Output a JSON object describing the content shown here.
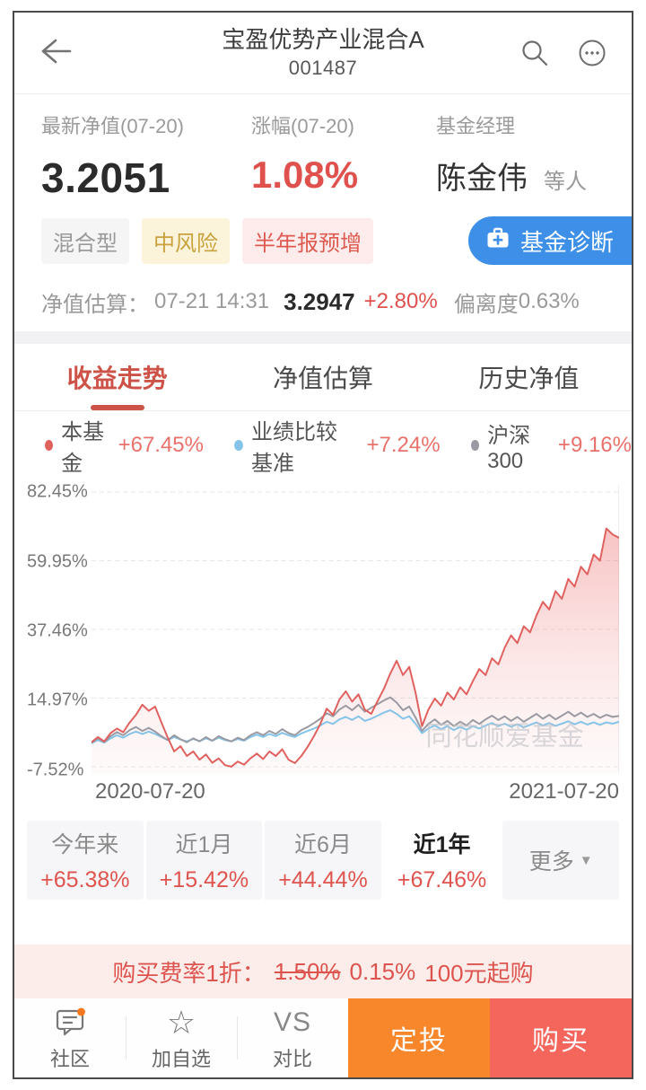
{
  "header": {
    "title": "宝盈优势产业混合A",
    "code": "001487"
  },
  "stats": {
    "nav_label": "最新净值(07-20)",
    "nav_value": "3.2051",
    "change_label": "涨幅(07-20)",
    "change_value": "1.08%",
    "manager_label": "基金经理",
    "manager_name": "陈金伟",
    "manager_suffix": "等人"
  },
  "tags": [
    {
      "label": "混合型",
      "type": "gray",
      "key": "fund-type"
    },
    {
      "label": "中风险",
      "type": "yellow",
      "key": "risk-level"
    },
    {
      "label": "半年报预增",
      "type": "red",
      "key": "report-flag"
    }
  ],
  "diagnose_button": {
    "label": "基金诊断",
    "color": "#3d8fe8",
    "icon": "first-aid-kit-icon"
  },
  "estimate": {
    "label": "净值估算：",
    "time": "07-21 14:31",
    "value": "3.2947",
    "change": "+2.80%",
    "deviation_label": "偏离度",
    "deviation_value": "0.63%"
  },
  "tabs": [
    {
      "label": "收益走势",
      "key": "yield-trend",
      "active": true
    },
    {
      "label": "净值估算",
      "key": "nav-estimate",
      "active": false
    },
    {
      "label": "历史净值",
      "key": "history-nav",
      "active": false
    }
  ],
  "chart_data": {
    "type": "line",
    "x_range": [
      "2020-07-20",
      "2021-07-20"
    ],
    "y_ticks": [
      82.45,
      59.95,
      37.46,
      14.97,
      -7.52
    ],
    "y_tick_labels": [
      "82.45%",
      "59.95%",
      "37.46%",
      "14.97%",
      "-7.52%"
    ],
    "grid": "dashed",
    "legend_position": "top",
    "watermark": "同花顺爱基金",
    "series": [
      {
        "name": "本基金",
        "return_label": "+67.45%",
        "color": "#e0605e",
        "area_fill": true,
        "values": [
          0.5,
          2.2,
          0.8,
          3.5,
          5,
          3.8,
          7,
          9.5,
          12.8,
          10.8,
          12.2,
          7,
          2,
          -2.5,
          -0.8,
          -4,
          -2.5,
          -5.2,
          -3.5,
          -6.2,
          -4.8,
          -7,
          -7.5,
          -5.8,
          -6.8,
          -4.8,
          -3.2,
          -5,
          -2.5,
          -4,
          -1.8,
          -5.2,
          -6.3,
          -4,
          -1,
          2.5,
          6.5,
          11.5,
          9.5,
          14.5,
          17.2,
          13.8,
          16.2,
          11.2,
          9.8,
          14,
          18,
          23,
          27.2,
          22.5,
          25.2,
          16.5,
          5.8,
          11.2,
          14.8,
          12.5,
          16.8,
          14.5,
          18.5,
          16.2,
          20.5,
          24.5,
          22.5,
          28,
          26,
          31.5,
          35.5,
          33,
          38.5,
          36.5,
          42,
          46.5,
          44,
          50,
          47.5,
          54,
          51.5,
          58,
          55.5,
          62,
          60,
          70.5,
          68.5,
          67.45
        ]
      },
      {
        "name": "业绩比较基准",
        "return_label": "+7.24%",
        "color": "#85c4e8",
        "area_fill": false,
        "values": [
          0.2,
          1.2,
          0.4,
          1.8,
          2.8,
          2,
          3.2,
          4,
          3.2,
          4,
          3.2,
          2.2,
          1.2,
          2.2,
          1.4,
          0.8,
          1.6,
          0.9,
          1.8,
          1,
          2,
          1.2,
          0.8,
          1.6,
          1,
          2.2,
          3,
          2.2,
          3.2,
          2.5,
          3.6,
          2.8,
          2.2,
          3.4,
          4.2,
          5,
          6,
          7.2,
          6.5,
          8,
          8.8,
          7.8,
          9,
          7.5,
          8.2,
          9.2,
          10.2,
          11,
          9.8,
          8.2,
          9,
          6.5,
          3.5,
          5,
          6,
          4.8,
          5.8,
          4.5,
          5.5,
          4.6,
          5.8,
          5,
          6,
          6.8,
          5.8,
          6.6,
          5.6,
          6.4,
          5.4,
          6.2,
          7,
          6,
          6.8,
          5.9,
          6.6,
          7.4,
          6.4,
          7.2,
          6.3,
          7,
          6.2,
          7,
          6.6,
          7.24
        ]
      },
      {
        "name": "沪深300",
        "return_label": "+9.16%",
        "color": "#9a9aa2",
        "area_fill": false,
        "values": [
          0.3,
          1.8,
          0.5,
          2.5,
          3.8,
          2.8,
          4.5,
          5.5,
          4.2,
          5.2,
          4,
          2.5,
          1.2,
          2.8,
          1.5,
          0.5,
          1.8,
          0.8,
          2.2,
          1,
          2.5,
          1.5,
          0.8,
          2,
          1.2,
          2.8,
          3.8,
          2.8,
          4.2,
          3.2,
          4.8,
          3.5,
          2.8,
          4.5,
          5.5,
          6.8,
          8.2,
          10,
          9,
          11.2,
          12.5,
          11,
          12.8,
          10.5,
          11.8,
          13,
          14.2,
          15.2,
          13.5,
          11,
          12.2,
          8.5,
          4.2,
          6.5,
          8,
          6.2,
          7.5,
          5.8,
          7.2,
          6,
          7.8,
          6.5,
          8,
          9.2,
          7.8,
          9,
          7.5,
          8.8,
          7.2,
          8.5,
          9.8,
          8.2,
          9.5,
          8,
          9.2,
          10.5,
          9,
          10.2,
          8.8,
          9.8,
          8.5,
          9.5,
          8.8,
          9.16
        ]
      }
    ]
  },
  "periods": [
    {
      "label": "今年来",
      "value": "+65.38%",
      "key": "ytd",
      "active": false
    },
    {
      "label": "近1月",
      "value": "+15.42%",
      "key": "1m",
      "active": false
    },
    {
      "label": "近6月",
      "value": "+44.44%",
      "key": "6m",
      "active": false
    },
    {
      "label": "近1年",
      "value": "+67.46%",
      "key": "1y",
      "active": true
    },
    {
      "label": "更多",
      "value": "",
      "key": "more",
      "active": false,
      "more": true
    }
  ],
  "promo": {
    "prefix": "购买费率1折：",
    "old_rate": "1.50%",
    "new_rate": "0.15%",
    "suffix": "100元起购"
  },
  "bottom_nav": {
    "items": [
      {
        "label": "社区",
        "key": "community",
        "icon": "community-chat-icon",
        "badge": true
      },
      {
        "label": "加自选",
        "key": "watchlist",
        "icon": "star-icon",
        "badge": false
      },
      {
        "label": "对比",
        "key": "compare",
        "icon": "vs-icon",
        "badge": false
      }
    ],
    "buttons": [
      {
        "label": "定投",
        "key": "auto-invest",
        "color": "#f8862b"
      },
      {
        "label": "购买",
        "key": "buy",
        "color": "#f4655c"
      }
    ]
  },
  "colors": {
    "accent_red": "#e0514e",
    "tab_active": "#cd5247",
    "diagnose_blue": "#3d8fe8",
    "promo_bg": "#fcedea",
    "invest_orange": "#f8862b",
    "buy_red": "#f4655c"
  }
}
